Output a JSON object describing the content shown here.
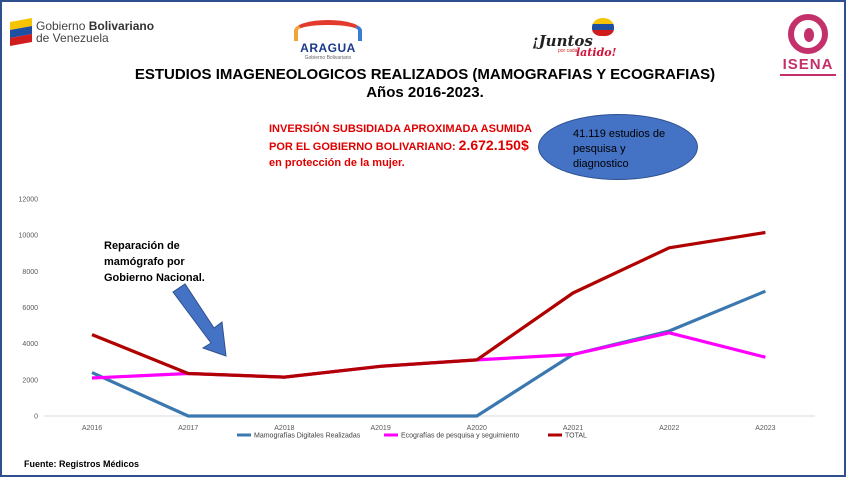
{
  "header": {
    "gov_logo": {
      "line1_plain": "Gobierno ",
      "line1_bold": "Bolivariano",
      "line2": "de Venezuela"
    },
    "aragua_logo": {
      "name": "ARAGUA",
      "sub": "Gobierno Bolivariano"
    },
    "juntos_logo": {
      "text1": "¡Juntos",
      "text2": "por cada",
      "text3": "latido!"
    },
    "isena_logo": {
      "name": "ISENA"
    }
  },
  "title_line1": "ESTUDIOS IMAGENEOLOGICOS REALIZADOS (MAMOGRAFIAS Y ECOGRAFIAS)",
  "title_line2": "Años 2016-2023.",
  "investment": {
    "line1": "INVERSIÓN SUBSIDIADA APROXIMADA ASUMIDA",
    "line2_prefix": "POR EL GOBIERNO BOLIVARIANO: ",
    "amount": "2.672.150$",
    "line3": "en protección de la mujer."
  },
  "studies_callout": "41.119 estudios de pesquisa y diagnostico",
  "annotation": {
    "line1": "Reparación de",
    "line2": "mamógrafo por",
    "line3": "Gobierno Nacional."
  },
  "source": "Fuente: Registros Médicos",
  "chart_data": {
    "type": "line",
    "categories": [
      "A2016",
      "A2017",
      "A2018",
      "A2019",
      "A2020",
      "A2021",
      "A2022",
      "A2023"
    ],
    "series": [
      {
        "name": "Mamografías Digitales Realizadas",
        "color": "#3b78b0",
        "values": [
          2400,
          0,
          0,
          0,
          0,
          3400,
          4700,
          6900
        ]
      },
      {
        "name": "Ecografías de pesquisa y seguimiento",
        "color": "#ff00ff",
        "values": [
          2100,
          2350,
          2150,
          2750,
          3100,
          3400,
          4600,
          3250
        ]
      },
      {
        "name": "TOTAL",
        "color": "#b00000",
        "values": [
          4500,
          2350,
          2150,
          2750,
          3100,
          6800,
          9300,
          10150
        ]
      }
    ],
    "ylim": [
      0,
      12000
    ],
    "yticks": [
      0,
      2000,
      4000,
      6000,
      8000,
      10000,
      12000
    ],
    "legend": "bottom"
  },
  "colors": {
    "title_red": "#e00000",
    "callout_blue": "#4472c4",
    "arrow_blue": "#4472c4"
  }
}
